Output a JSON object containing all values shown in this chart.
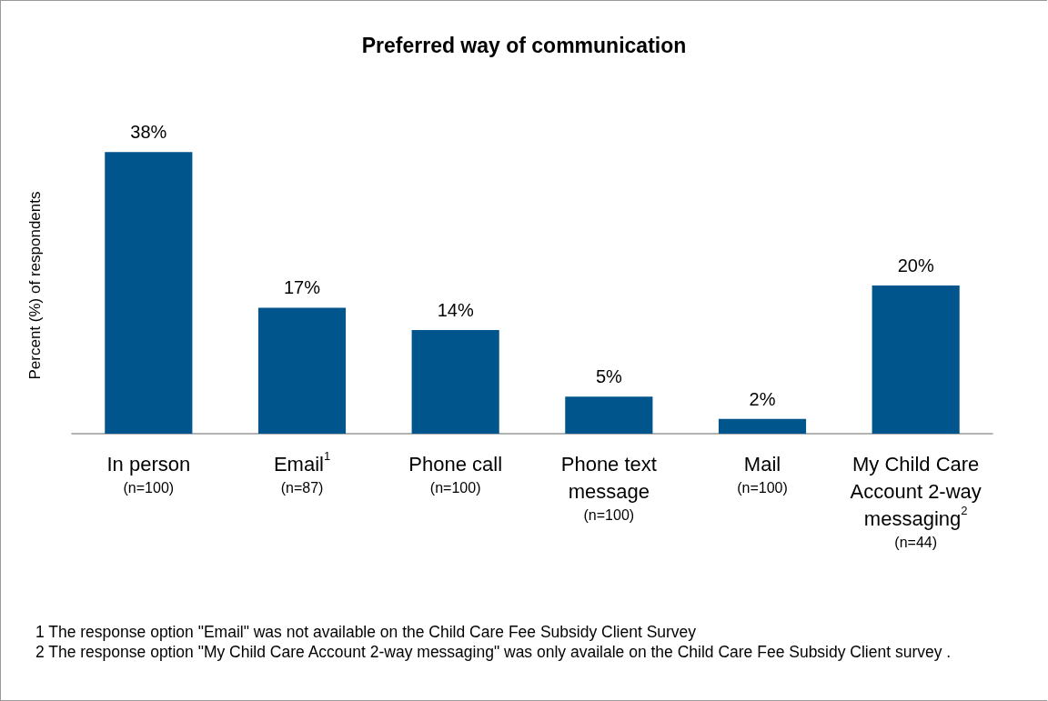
{
  "chart_data": {
    "type": "bar",
    "title": "Preferred way of communication",
    "ylabel": "Percent (%) of respondents",
    "categories": [
      "In person\n(n=100)",
      "Email$^{1}$\n(n=87)",
      "Phone call\n(n=100)",
      "Phone text\nmessage\n(n=100)",
      "Mail\n(n=100)",
      "My Child Care\nAccount 2-way\nmessaging$^{2}$\n(n=44)"
    ],
    "values": [
      38,
      17,
      14,
      5,
      2,
      20
    ],
    "value_labels": [
      "38%",
      "17%",
      "14%",
      "5%",
      "2%",
      "20%"
    ],
    "color": "#00558c",
    "grid": false,
    "annotations": [
      "1 The response option \"Email\" was not available on the Child Care Fee Subsidy Client Survey",
      "2 The response option \"My Child Care Account 2-way messaging\" was only availale on the Child Care Fee Subsidy Client survey ."
    ]
  }
}
